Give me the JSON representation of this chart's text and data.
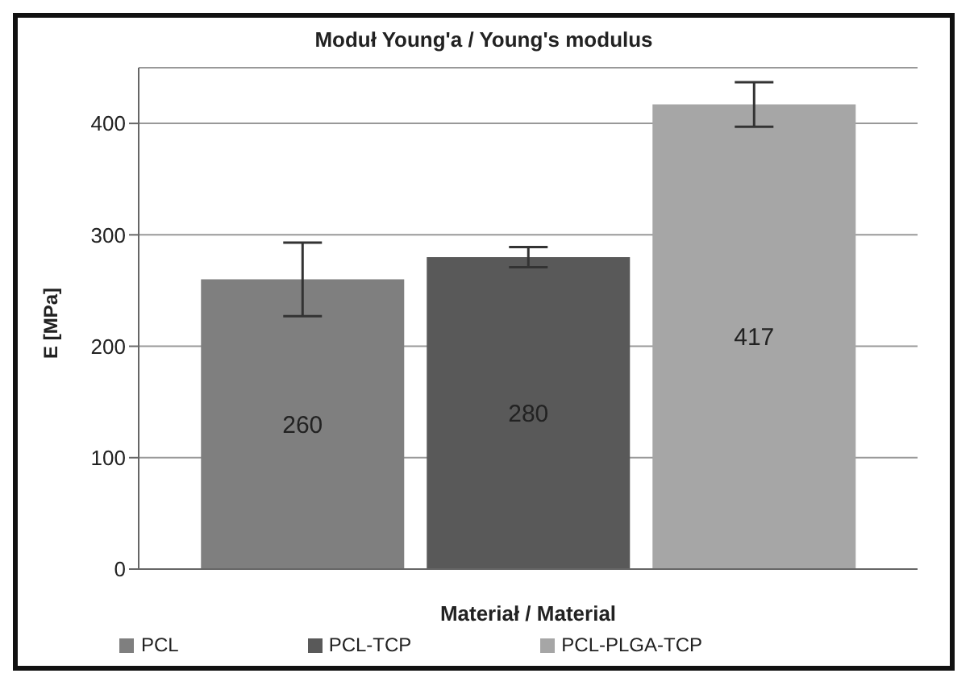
{
  "chart_data": {
    "type": "bar",
    "title": "Moduł Young'a / Young's modulus",
    "xlabel": "Materiał  / Material",
    "ylabel": "E [MPa]",
    "categories": [
      null
    ],
    "series": [
      {
        "name": "PCL",
        "color": "#7f7f7f",
        "values": [
          260
        ],
        "errors": [
          33
        ]
      },
      {
        "name": "PCL-TCP",
        "color": "#595959",
        "values": [
          280
        ],
        "errors": [
          9
        ]
      },
      {
        "name": "PCL-PLGA-TCP",
        "color": "#a6a6a6",
        "values": [
          417
        ],
        "errors": [
          20
        ]
      }
    ],
    "ylim": [
      0,
      450
    ],
    "yticks": [
      0,
      100,
      200,
      300,
      400
    ],
    "grid": "y",
    "legend": "bottom",
    "data_labels": true
  }
}
